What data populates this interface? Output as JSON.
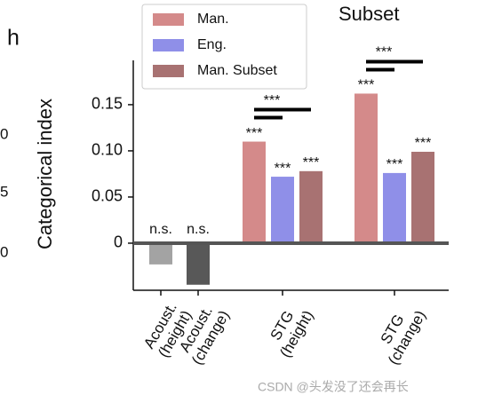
{
  "panel_label": "h",
  "partial_title": "Subset",
  "cropped_tick_fragments": [
    "0",
    "5",
    "0"
  ],
  "watermark": "CSDN @头发没了还会再长",
  "chart_data": {
    "type": "bar",
    "ylabel": "Categorical index",
    "categories": [
      "Acoust.\n(height)",
      "Acoust.\n(change)",
      "STG\n(height)",
      "STG\n(change)"
    ],
    "ylim": [
      -0.051,
      0.198
    ],
    "yticks": [
      0,
      0.05,
      {
        "value": 0.1,
        "label": "0.10"
      },
      0.15
    ],
    "baseline_bars": {
      "values": [
        -0.023,
        -0.045,
        null,
        null
      ],
      "colors": [
        "#a3a3a3",
        "#585858",
        null,
        null
      ],
      "significance_labels": [
        "n.s.",
        "n.s.",
        null,
        null
      ]
    },
    "series": [
      {
        "name": "Man.",
        "color": "#d48a8a",
        "values": [
          null,
          null,
          0.11,
          0.162
        ],
        "significance_labels": [
          null,
          null,
          "***",
          "***"
        ]
      },
      {
        "name": "Eng.",
        "color": "#8f8fe8",
        "values": [
          null,
          null,
          0.072,
          0.076
        ],
        "significance_labels": [
          null,
          null,
          "***",
          "***"
        ]
      },
      {
        "name": "Man. Subset",
        "color": "#a87272",
        "values": [
          null,
          null,
          0.078,
          0.099
        ],
        "significance_labels": [
          null,
          null,
          "***",
          "***"
        ]
      }
    ],
    "comparison_labels": [
      null,
      null,
      "***",
      "***"
    ],
    "legend": "upper left"
  }
}
